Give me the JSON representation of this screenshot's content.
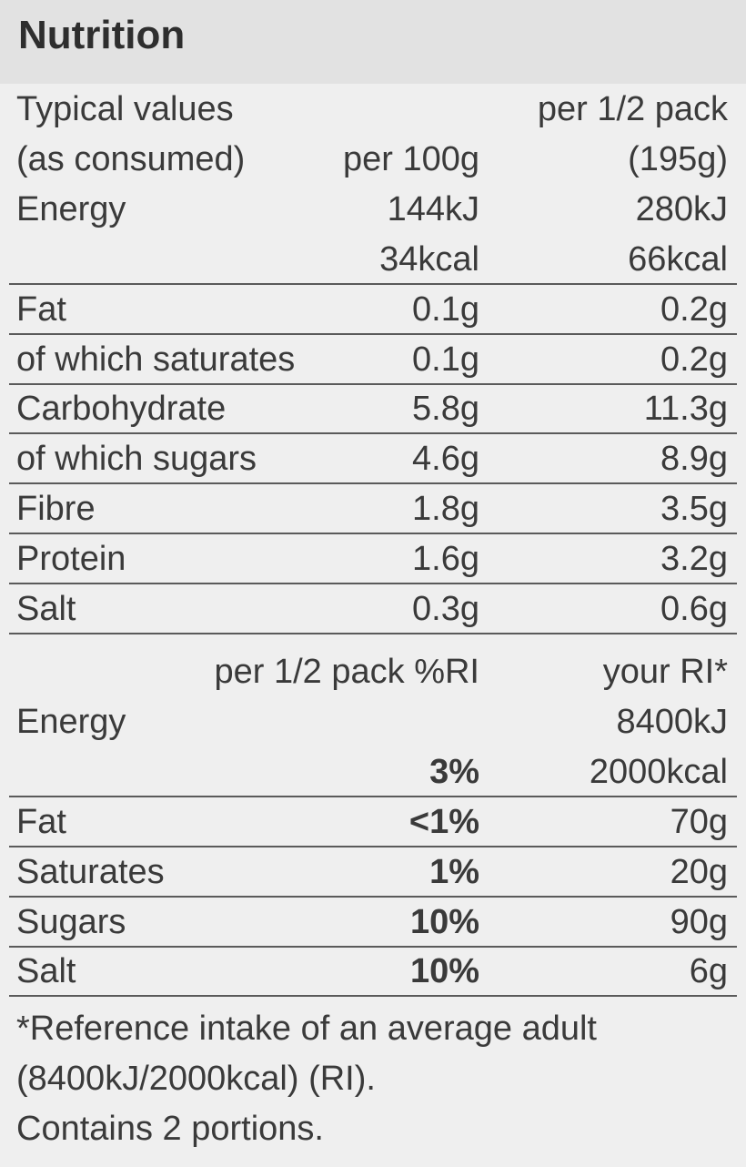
{
  "header": {
    "title": "Nutrition"
  },
  "table": {
    "rows": [
      [
        "Typical values",
        null,
        "per 1/2 pack"
      ],
      [
        "(as consumed)",
        "per 100g",
        "(195g)"
      ],
      [
        "Energy",
        "144kJ",
        "280kJ"
      ],
      [
        null,
        "34kcal",
        "66kcal"
      ],
      [
        "Fat",
        "0.1g",
        "0.2g"
      ],
      [
        "of which saturates",
        "0.1g",
        "0.2g"
      ],
      [
        "Carbohydrate",
        "5.8g",
        "11.3g"
      ],
      [
        "of which sugars",
        "4.6g",
        "8.9g"
      ],
      [
        "Fibre",
        "1.8g",
        "3.5g"
      ],
      [
        "Protein",
        "1.6g",
        "3.2g"
      ],
      [
        "Salt",
        "0.3g",
        "0.6g"
      ]
    ]
  },
  "ri_table": {
    "rows": [
      [
        null,
        "per 1/2 pack %RI",
        "your RI*"
      ],
      [
        "Energy",
        null,
        "8400kJ"
      ],
      [
        null,
        "3%",
        "2000kcal"
      ],
      [
        "Fat",
        "<1%",
        "70g"
      ],
      [
        "Saturates",
        "1%",
        "20g"
      ],
      [
        "Sugars",
        "10%",
        "90g"
      ],
      [
        "Salt",
        "10%",
        "6g"
      ]
    ]
  },
  "footnote": {
    "lines": [
      "*Reference intake of an average adult",
      "(8400kJ/2000kcal) (RI).",
      "Contains 2 portions."
    ]
  }
}
